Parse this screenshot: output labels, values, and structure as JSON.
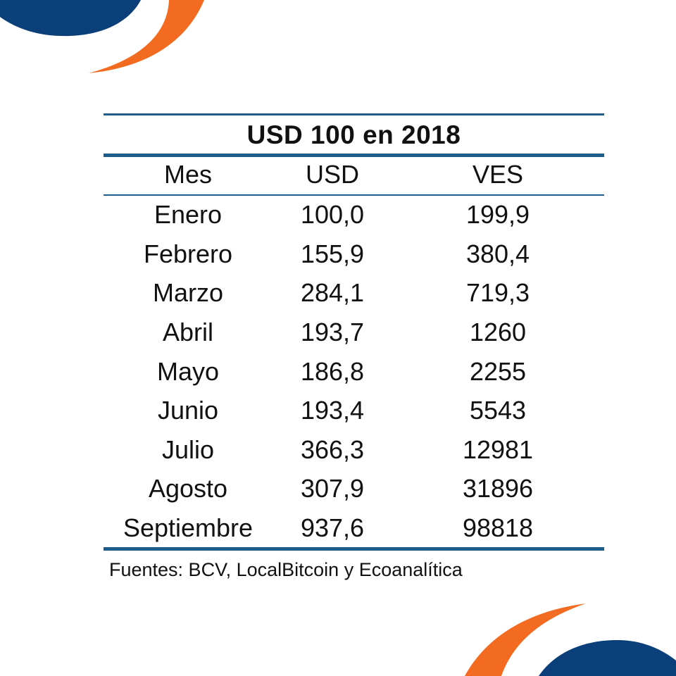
{
  "chart_data": {
    "type": "table",
    "title": "USD 100 en 2018",
    "columns": [
      "Mes",
      "USD",
      "VES"
    ],
    "rows": [
      [
        "Enero",
        "100,0",
        "199,9"
      ],
      [
        "Febrero",
        "155,9",
        "380,4"
      ],
      [
        "Marzo",
        "284,1",
        "719,3"
      ],
      [
        "Abril",
        "193,7",
        "1260"
      ],
      [
        "Mayo",
        "186,8",
        "2255"
      ],
      [
        "Junio",
        "193,4",
        "5543"
      ],
      [
        "Julio",
        "366,3",
        "12981"
      ],
      [
        "Agosto",
        "307,9",
        "31896"
      ],
      [
        "Septiembre",
        "937,6",
        "98818"
      ]
    ],
    "source": "Fuentes: BCV, LocalBitcoin y Ecoanalítica"
  },
  "colors": {
    "rule": "#1f5d8c",
    "deco_blue": "#0b3f7a",
    "deco_orange": "#f26b21",
    "text": "#111111",
    "background": "#ffffff"
  }
}
